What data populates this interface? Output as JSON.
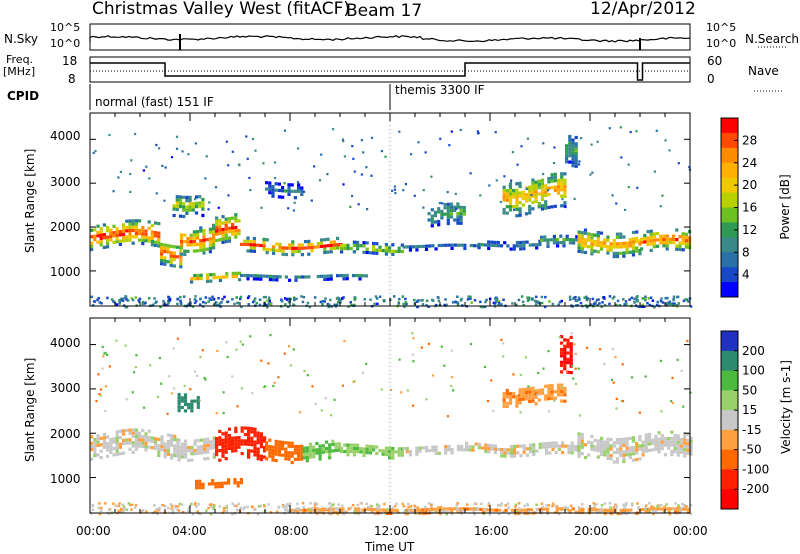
{
  "header": {
    "station": "Christmas Valley West (fitACF)",
    "beam": "Beam 17",
    "date": "12/Apr/2012"
  },
  "top_panels": {
    "noise_left_label": "N.Sky",
    "noise_right_label": "N.Search",
    "noise_scale_top": "10^5",
    "noise_scale_bottom": "10^0",
    "freq_label_line1": "Freq.",
    "freq_label_line2": "[MHz]",
    "freq_ticks": [
      "18",
      "8"
    ],
    "nave_label": "Nave",
    "nave_ticks": [
      "60",
      "0"
    ],
    "cpid_label": "CPID",
    "cpid_segments": [
      {
        "name": "normal (fast) 151 IF",
        "start_hour": 0
      },
      {
        "name": "themis 3300 IF",
        "start_hour": 12
      }
    ]
  },
  "chart_data": [
    {
      "type": "heatmap",
      "name": "Power",
      "ylabel": "Slant Range [km]",
      "ylim": [
        200,
        4600
      ],
      "y_ticks": [
        1000,
        2000,
        3000,
        4000
      ],
      "colorbar_label": "Power [dB]",
      "colorbar_ticks": [
        "28",
        "24",
        "20",
        "16",
        "12",
        "8",
        "4"
      ],
      "colorbar_colors": [
        "#ff0000",
        "#ff4a00",
        "#ff8c00",
        "#ffb000",
        "#f0c800",
        "#b8d000",
        "#6cc020",
        "#2e9a52",
        "#3a8a8a",
        "#2870a8",
        "#1848c8",
        "#0000ff"
      ],
      "bands": [
        {
          "start": 0.0,
          "end": 2.8,
          "center": 1850,
          "width": 520,
          "value": 26
        },
        {
          "start": 2.8,
          "end": 3.6,
          "center": 1450,
          "width": 500,
          "value": 25
        },
        {
          "start": 3.6,
          "end": 5.0,
          "center": 1800,
          "width": 600,
          "value": 24
        },
        {
          "start": 5.0,
          "end": 6.0,
          "center": 1950,
          "width": 600,
          "value": 26
        },
        {
          "start": 6.0,
          "end": 10.0,
          "center": 1600,
          "width": 300,
          "value": 25
        },
        {
          "start": 10.0,
          "end": 12.5,
          "center": 1550,
          "width": 220,
          "value": 18
        },
        {
          "start": 12.5,
          "end": 15.5,
          "center": 1600,
          "width": 140,
          "value": 8
        },
        {
          "start": 15.5,
          "end": 18.0,
          "center": 1650,
          "width": 180,
          "value": 9
        },
        {
          "start": 18.0,
          "end": 19.5,
          "center": 1700,
          "width": 260,
          "value": 12
        },
        {
          "start": 19.5,
          "end": 22.0,
          "center": 1700,
          "width": 520,
          "value": 22
        },
        {
          "start": 22.0,
          "end": 24.0,
          "center": 1700,
          "width": 460,
          "value": 24
        }
      ],
      "patches": [
        {
          "start": 4.0,
          "end": 6.0,
          "center": 900,
          "width": 180,
          "value": 22
        },
        {
          "start": 6.0,
          "end": 11.0,
          "center": 900,
          "width": 120,
          "value": 10
        },
        {
          "start": 3.3,
          "end": 4.5,
          "center": 2600,
          "width": 500,
          "value": 16
        },
        {
          "start": 7.0,
          "end": 8.5,
          "center": 2900,
          "width": 300,
          "value": 8
        },
        {
          "start": 13.5,
          "end": 15.0,
          "center": 2300,
          "width": 500,
          "value": 12
        },
        {
          "start": 16.5,
          "end": 19.0,
          "center": 2800,
          "width": 800,
          "value": 20
        },
        {
          "start": 19.0,
          "end": 19.4,
          "center": 3700,
          "width": 700,
          "value": 12
        }
      ]
    },
    {
      "type": "heatmap",
      "name": "Velocity",
      "ylabel": "Slant Range [km]",
      "ylim": [
        200,
        4600
      ],
      "y_ticks": [
        1000,
        2000,
        3000,
        4000
      ],
      "colorbar_label": "Velocity [m s-1]",
      "colorbar_ticks": [
        "200",
        "100",
        "50",
        "15",
        "-15",
        "-50",
        "-100",
        "-200"
      ],
      "colorbar_colors": [
        "#2030c0",
        "#2c8a6e",
        "#4cba3c",
        "#9ad06a",
        "#c8c8c8",
        "#ffa040",
        "#ff6a00",
        "#ff2000",
        "#ff0000"
      ],
      "bands": [
        {
          "start": 0.0,
          "end": 3.5,
          "center": 1800,
          "width": 560,
          "value": 0
        },
        {
          "start": 3.5,
          "end": 5.0,
          "center": 1750,
          "width": 500,
          "value": 0
        },
        {
          "start": 5.0,
          "end": 7.0,
          "center": 1750,
          "width": 700,
          "value": -170
        },
        {
          "start": 7.0,
          "end": 8.5,
          "center": 1700,
          "width": 500,
          "value": -80
        },
        {
          "start": 8.5,
          "end": 10.0,
          "center": 1650,
          "width": 380,
          "value": 60
        },
        {
          "start": 10.0,
          "end": 12.5,
          "center": 1650,
          "width": 280,
          "value": 40
        },
        {
          "start": 12.5,
          "end": 15.0,
          "center": 1650,
          "width": 160,
          "value": 0
        },
        {
          "start": 15.0,
          "end": 19.5,
          "center": 1700,
          "width": 280,
          "value": 0
        },
        {
          "start": 19.5,
          "end": 24.0,
          "center": 1750,
          "width": 560,
          "value": 0
        }
      ],
      "patches": [
        {
          "start": 4.2,
          "end": 6.0,
          "center": 900,
          "width": 150,
          "value": -80
        },
        {
          "start": 3.5,
          "end": 4.3,
          "center": 2800,
          "width": 400,
          "value": 160
        },
        {
          "start": 18.8,
          "end": 19.3,
          "center": 3700,
          "width": 800,
          "value": -200
        },
        {
          "start": 16.5,
          "end": 19.0,
          "center": 2900,
          "width": 400,
          "value": -40
        },
        {
          "start": 8.0,
          "end": 24.0,
          "center": 300,
          "width": 120,
          "value": -40
        }
      ]
    }
  ],
  "x_axis": {
    "ticks": [
      "00:00",
      "04:00",
      "08:00",
      "12:00",
      "16:00",
      "20:00",
      "00:00"
    ],
    "label": "Time UT"
  }
}
